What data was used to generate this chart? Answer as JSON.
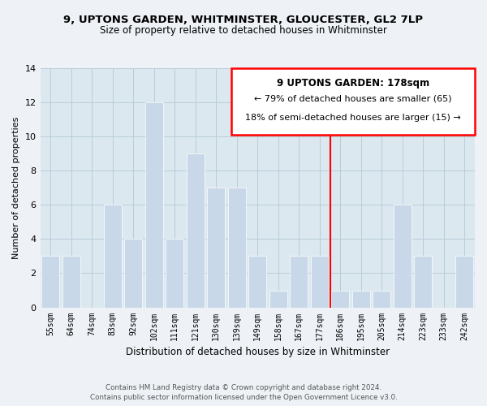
{
  "title1": "9, UPTONS GARDEN, WHITMINSTER, GLOUCESTER, GL2 7LP",
  "title2": "Size of property relative to detached houses in Whitminster",
  "xlabel": "Distribution of detached houses by size in Whitminster",
  "ylabel": "Number of detached properties",
  "bar_labels": [
    "55sqm",
    "64sqm",
    "74sqm",
    "83sqm",
    "92sqm",
    "102sqm",
    "111sqm",
    "121sqm",
    "130sqm",
    "139sqm",
    "149sqm",
    "158sqm",
    "167sqm",
    "177sqm",
    "186sqm",
    "195sqm",
    "205sqm",
    "214sqm",
    "223sqm",
    "233sqm",
    "242sqm"
  ],
  "bar_values": [
    3,
    3,
    0,
    6,
    4,
    12,
    4,
    9,
    7,
    7,
    3,
    1,
    3,
    3,
    1,
    1,
    1,
    6,
    3,
    0,
    3
  ],
  "bar_color": "#c8d8e8",
  "bar_edge_color": "#ffffff",
  "ylim": [
    0,
    14
  ],
  "yticks": [
    0,
    2,
    4,
    6,
    8,
    10,
    12,
    14
  ],
  "property_line_x": 13.5,
  "property_line_label": "9 UPTONS GARDEN: 178sqm",
  "pct_smaller": "79% of detached houses are smaller (65)",
  "pct_larger": "18% of semi-detached houses are larger (15)",
  "footer1": "Contains HM Land Registry data © Crown copyright and database right 2024.",
  "footer2": "Contains public sector information licensed under the Open Government Licence v3.0.",
  "background_color": "#eef2f6",
  "plot_bg_color": "#dce8f0",
  "grid_color": "#b8cdd8"
}
